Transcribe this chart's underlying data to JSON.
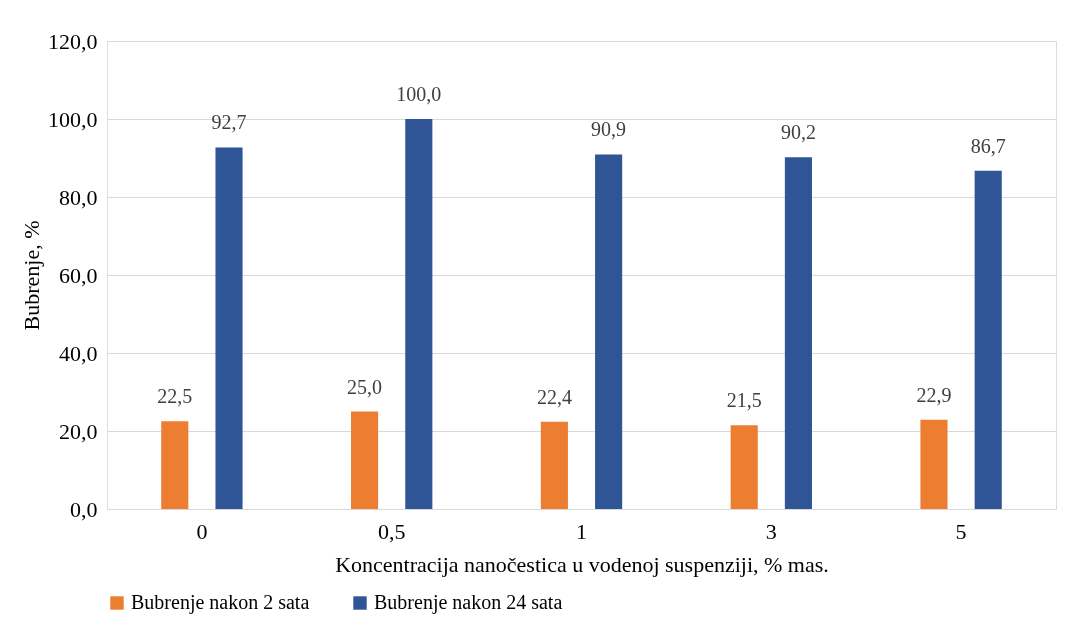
{
  "chart_data": {
    "type": "bar",
    "xlabel": "Koncentracija nanočestica u vodenoj suspenziji, % mas.",
    "ylabel": "Bubrenje, %",
    "categories": [
      "0",
      "0,5",
      "1",
      "3",
      "5"
    ],
    "series": [
      {
        "name": "Bubrenje nakon 2 sata",
        "color": "#ed7d31",
        "values": [
          22.5,
          25.0,
          22.4,
          21.5,
          22.9
        ],
        "value_labels": [
          "22,5",
          "25,0",
          "22,4",
          "21,5",
          "22,9"
        ]
      },
      {
        "name": "Bubrenje nakon 24 sata",
        "color": "#2f5597",
        "values": [
          92.7,
          100.0,
          90.9,
          90.2,
          86.7
        ],
        "value_labels": [
          "92,7",
          "100,0",
          "90,9",
          "90,2",
          "86,7"
        ]
      }
    ],
    "ylim": [
      0,
      120
    ],
    "yticks": [
      {
        "value": 0,
        "label": "0,0"
      },
      {
        "value": 20,
        "label": "20,0"
      },
      {
        "value": 40,
        "label": "40,0"
      },
      {
        "value": 60,
        "label": "60,0"
      },
      {
        "value": 80,
        "label": "80,0"
      },
      {
        "value": 100,
        "label": "100,0"
      },
      {
        "value": 120,
        "label": "120,0"
      }
    ],
    "grid": "y",
    "legend": "bottom"
  }
}
